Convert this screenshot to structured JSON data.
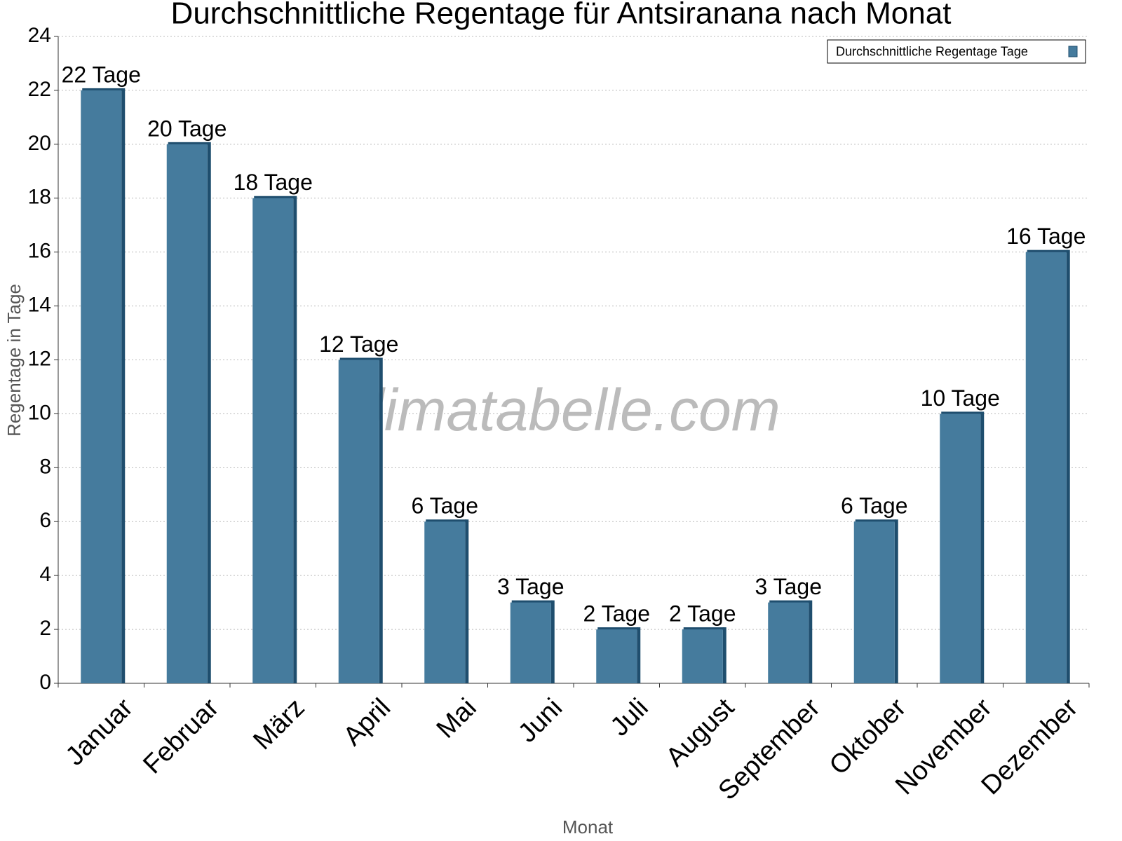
{
  "chart_data": {
    "type": "bar",
    "title": "Durchschnittliche Regentage für Antsiranana nach Monat",
    "x_label": "Monat",
    "y_label": "Regentage in Tage",
    "watermark": "klimatabelle.com",
    "categories": [
      "Januar",
      "Februar",
      "März",
      "April",
      "Mai",
      "Juni",
      "Juli",
      "August",
      "September",
      "Oktober",
      "November",
      "Dezember"
    ],
    "series": [
      {
        "name": "Durchschnittliche Regentage Tage",
        "color": "#457b9d",
        "values": [
          22,
          20,
          18,
          12,
          6,
          3,
          2,
          2,
          3,
          6,
          10,
          16
        ],
        "value_labels": [
          "22 Tage",
          "20 Tage",
          "18 Tage",
          "12 Tage",
          "6 Tage",
          "3 Tage",
          "2 Tage",
          "2 Tage",
          "3 Tage",
          "6 Tage",
          "10 Tage",
          "16 Tage"
        ]
      }
    ],
    "ylim": [
      0,
      24
    ],
    "yticks": [
      0,
      2,
      4,
      6,
      8,
      10,
      12,
      14,
      16,
      18,
      20,
      22,
      24
    ],
    "grid": true,
    "legend": "upper right"
  }
}
